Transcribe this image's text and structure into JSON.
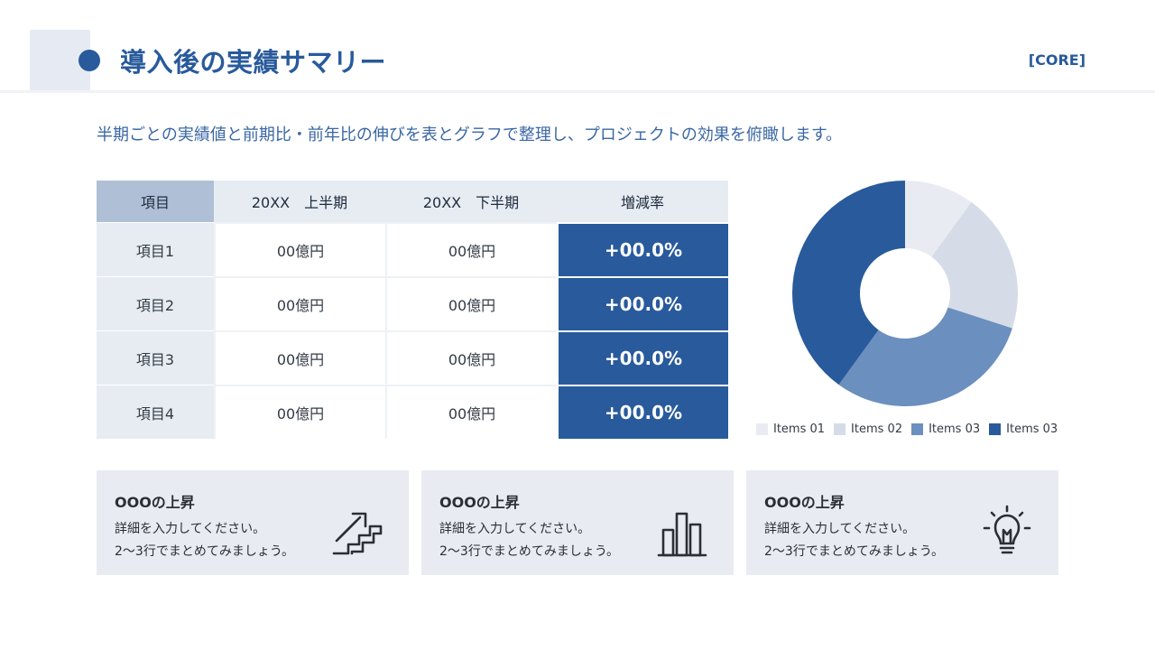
{
  "header": {
    "title": "導入後の実績サマリー",
    "tag": "[CORE]"
  },
  "subtitle": "半期ごとの実績値と前期比・前年比の伸びを表とグラフで整理し、プロジェクトの効果を俯瞰します。",
  "table": {
    "headers": [
      "項目",
      "20XX　上半期",
      "20XX　下半期",
      "増減率"
    ],
    "rows": [
      {
        "label": "項目1",
        "h1": "00億円",
        "h2": "00億円",
        "rate": "+00.0%"
      },
      {
        "label": "項目2",
        "h1": "00億円",
        "h2": "00億円",
        "rate": "+00.0%"
      },
      {
        "label": "項目3",
        "h1": "00億円",
        "h2": "00億円",
        "rate": "+00.0%"
      },
      {
        "label": "項目4",
        "h1": "00億円",
        "h2": "00億円",
        "rate": "+00.0%"
      }
    ]
  },
  "chart_data": {
    "type": "pie",
    "donut": true,
    "labels": [
      "Items 01",
      "Items 02",
      "Items 03",
      "Items 03"
    ],
    "values": [
      10,
      20,
      30,
      40
    ],
    "colors": [
      "#e8ecf2",
      "#d5dce8",
      "#6b8fbe",
      "#285a9c"
    ],
    "legend_position": "bottom"
  },
  "cards": [
    {
      "title": "OOOの上昇",
      "line1": "詳細を入力してください。",
      "line2": "2〜3行でまとめてみましょう。",
      "icon": "stairs-arrow-icon"
    },
    {
      "title": "OOOの上昇",
      "line1": "詳細を入力してください。",
      "line2": "2〜3行でまとめてみましょう。",
      "icon": "bar-chart-icon"
    },
    {
      "title": "OOOの上昇",
      "line1": "詳細を入力してください。",
      "line2": "2〜3行でまとめてみましょう。",
      "icon": "lightbulb-icon"
    }
  ],
  "colors": {
    "primary": "#285a9c",
    "light": "#e8ecf2"
  }
}
